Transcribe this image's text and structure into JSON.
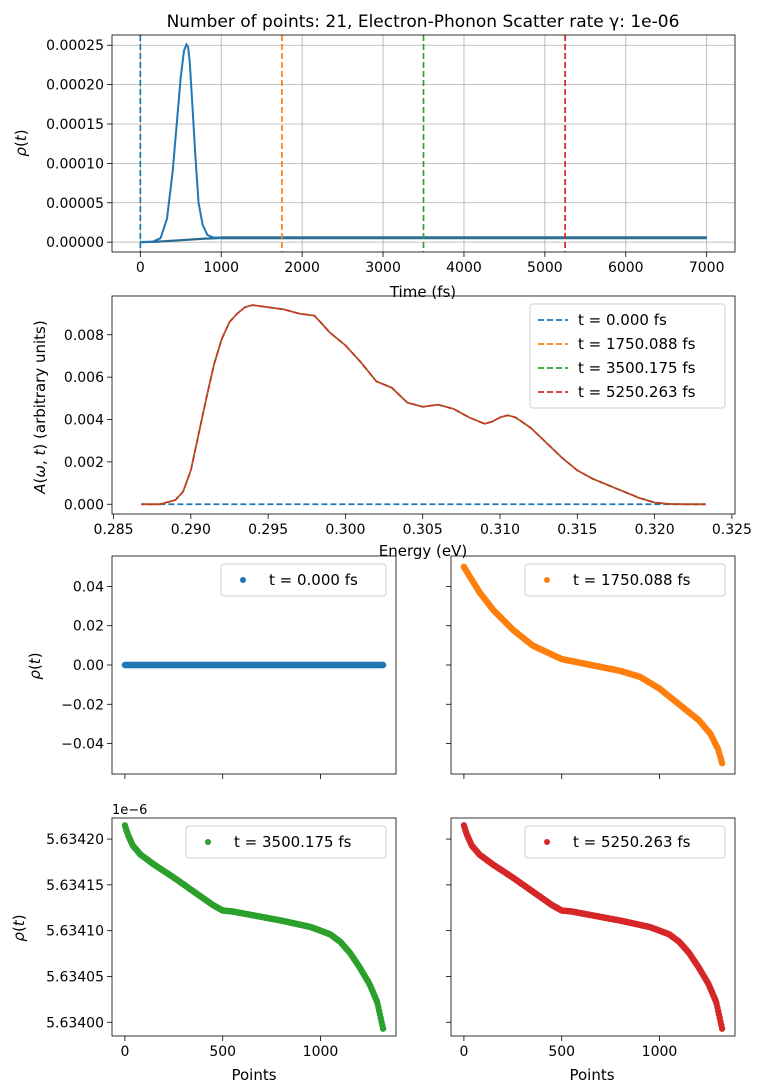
{
  "colors": {
    "blue": "#1f77b4",
    "orange": "#ff7f0e",
    "green": "#2ca02c",
    "red": "#d62728",
    "brown": "#b5452a",
    "grid": "#b0b0b0"
  },
  "chart_data": [
    {
      "type": "line",
      "title": "Number of points: 21, Electron-Phonon Scatter rate γ: 1e-06",
      "xlabel": "Time (fs)",
      "ylabel": "ρ(t)",
      "xlim": [
        -350,
        7350
      ],
      "ylim": [
        -1.25e-05,
        0.000263
      ],
      "x_ticks": [
        0,
        1000,
        2000,
        3000,
        4000,
        5000,
        6000,
        7000
      ],
      "x_tick_labels": [
        "0",
        "1000",
        "2000",
        "3000",
        "4000",
        "5000",
        "6000",
        "7000"
      ],
      "y_ticks": [
        0,
        5e-05,
        0.0001,
        0.00015,
        0.0002,
        0.00025
      ],
      "y_tick_labels": [
        "0.00000",
        "0.00005",
        "0.00010",
        "0.00015",
        "0.00020",
        "0.00025"
      ],
      "grid": true,
      "series": [
        {
          "x": [
            0,
            150,
            250,
            330,
            400,
            450,
            500,
            540,
            570,
            590,
            610,
            640,
            680,
            720,
            770,
            830,
            900,
            1000,
            1200,
            7000
          ],
          "y": [
            0,
            5e-07,
            5e-06,
            3e-05,
            9e-05,
            0.00015,
            0.00021,
            0.000243,
            0.000251,
            0.000248,
            0.00023,
            0.00018,
            0.00011,
            5e-05,
            2.2e-05,
            9e-06,
            6e-06,
            5.7e-06,
            5.6e-06,
            5.6e-06
          ],
          "color": "#1f77b4"
        },
        {
          "x": [
            0,
            200,
            500,
            800,
            1000,
            7000
          ],
          "y": [
            0,
            5e-07,
            2.5e-06,
            4.5e-06,
            5.2e-06,
            5.6e-06
          ],
          "color": "#2a6a8f"
        }
      ],
      "vlines": [
        {
          "x": 0,
          "color": "#1f77b4"
        },
        {
          "x": 1750.088,
          "color": "#ff7f0e"
        },
        {
          "x": 3500.175,
          "color": "#2ca02c"
        },
        {
          "x": 5250.263,
          "color": "#d62728"
        }
      ]
    },
    {
      "type": "line",
      "xlabel": "Energy (eV)",
      "ylabel": "A(ω, t) (arbitrary units)",
      "xlim": [
        0.2849,
        0.3252
      ],
      "ylim": [
        -0.00046,
        0.00983
      ],
      "x_ticks": [
        0.285,
        0.29,
        0.295,
        0.3,
        0.305,
        0.31,
        0.315,
        0.32,
        0.325
      ],
      "x_tick_labels": [
        "0.285",
        "0.290",
        "0.295",
        "0.300",
        "0.305",
        "0.310",
        "0.315",
        "0.320",
        "0.325"
      ],
      "y_ticks": [
        0,
        0.002,
        0.004,
        0.006,
        0.008
      ],
      "y_tick_labels": [
        "0.000",
        "0.002",
        "0.004",
        "0.006",
        "0.008"
      ],
      "grid": false,
      "legend": {
        "position": "top-right",
        "entries": [
          "t = 0.000 fs",
          "t = 1750.088 fs",
          "t = 3500.175 fs",
          "t = 5250.263 fs"
        ]
      },
      "series": [
        {
          "name": "t = 0.000 fs",
          "color": "#1f77b4",
          "x": [
            0.2868,
            0.3233
          ],
          "y": [
            0,
            0
          ]
        },
        {
          "name": "t = 1750.088 fs",
          "color": "#ff7f0e",
          "x": [
            0.2868,
            0.288,
            0.289,
            0.2895,
            0.29,
            0.2905,
            0.291,
            0.2915,
            0.292,
            0.2925,
            0.293,
            0.2935,
            0.294,
            0.295,
            0.296,
            0.297,
            0.298,
            0.299,
            0.3,
            0.301,
            0.302,
            0.303,
            0.304,
            0.305,
            0.306,
            0.307,
            0.308,
            0.309,
            0.3095,
            0.31,
            0.3105,
            0.311,
            0.312,
            0.313,
            0.314,
            0.315,
            0.316,
            0.317,
            0.318,
            0.319,
            0.32,
            0.321,
            0.322,
            0.3233
          ],
          "y": [
            0,
            0,
            0.0002,
            0.0006,
            0.0016,
            0.0033,
            0.005,
            0.0066,
            0.0078,
            0.0086,
            0.009,
            0.0093,
            0.0094,
            0.0093,
            0.0092,
            0.009,
            0.0089,
            0.0081,
            0.0075,
            0.0067,
            0.0058,
            0.0055,
            0.0048,
            0.0046,
            0.0047,
            0.0045,
            0.0041,
            0.0038,
            0.0039,
            0.0041,
            0.0042,
            0.0041,
            0.0036,
            0.0029,
            0.0022,
            0.0016,
            0.0012,
            0.0009,
            0.0006,
            0.0003,
            8e-05,
            1e-05,
            0,
            0
          ]
        },
        {
          "name": "t = 3500.175 fs",
          "color": "#2ca02c",
          "same_as": "t = 1750.088 fs"
        },
        {
          "name": "t = 5250.263 fs",
          "color": "#d62728",
          "same_as": "t = 1750.088 fs"
        }
      ]
    },
    {
      "type": "scatter",
      "ylabel": "ρ(t)",
      "xlim": [
        -66,
        1386
      ],
      "ylim": [
        -0.0555,
        0.0555
      ],
      "x_ticks": [
        0,
        500,
        1000
      ],
      "y_ticks": [
        -0.04,
        -0.02,
        0,
        0.02,
        0.04
      ],
      "y_tick_labels": [
        "−0.04",
        "−0.02",
        "0.00",
        "0.02",
        "0.04"
      ],
      "legend": {
        "position": "top-right",
        "entries": [
          "t = 0.000 fs"
        ]
      },
      "series": [
        {
          "name": "t = 0.000 fs",
          "color": "#1f77b4",
          "x": [
            0,
            1320
          ],
          "y": [
            0,
            0
          ],
          "profile": "flat"
        }
      ]
    },
    {
      "type": "scatter",
      "xlim": [
        -66,
        1386
      ],
      "ylim": [
        -0.0555,
        0.0555
      ],
      "x_ticks": [
        0,
        500,
        1000
      ],
      "y_ticks": [
        -0.04,
        -0.02,
        0,
        0.02,
        0.04
      ],
      "legend": {
        "position": "top-right",
        "entries": [
          "t = 1750.088 fs"
        ]
      },
      "series": [
        {
          "name": "t = 1750.088 fs",
          "color": "#ff7f0e",
          "x": [
            0,
            30,
            80,
            150,
            250,
            350,
            500,
            650,
            800,
            900,
            1000,
            1100,
            1200,
            1260,
            1300,
            1320
          ],
          "y": [
            0.05,
            0.045,
            0.037,
            0.028,
            0.018,
            0.01,
            0.003,
            0.0,
            -0.003,
            -0.006,
            -0.012,
            -0.02,
            -0.028,
            -0.035,
            -0.043,
            -0.05
          ]
        }
      ]
    },
    {
      "type": "scatter",
      "ylabel": "ρ(t)",
      "offset_text": "1e−6",
      "xlabel": "Points",
      "xlim": [
        -66,
        1386
      ],
      "ylim": [
        5.633985,
        5.634223
      ],
      "x_ticks": [
        0,
        500,
        1000
      ],
      "x_tick_labels": [
        "0",
        "500",
        "1000"
      ],
      "y_ticks": [
        5.634,
        5.63405,
        5.6341,
        5.63415,
        5.6342
      ],
      "y_tick_labels": [
        "5.63400",
        "5.63405",
        "5.63410",
        "5.63415",
        "5.63420"
      ],
      "legend": {
        "position": "top-right",
        "entries": [
          "t = 3500.175 fs"
        ]
      },
      "series": [
        {
          "name": "t = 3500.175 fs",
          "color": "#2ca02c",
          "x": [
            0,
            15,
            40,
            80,
            150,
            250,
            350,
            450,
            500,
            550,
            650,
            800,
            950,
            1050,
            1100,
            1150,
            1200,
            1250,
            1290,
            1320
          ],
          "y": [
            5.634215,
            5.634205,
            5.634193,
            5.634183,
            5.634172,
            5.634158,
            5.634143,
            5.634128,
            5.634122,
            5.634121,
            5.634117,
            5.634111,
            5.634104,
            5.634096,
            5.634088,
            5.634076,
            5.63406,
            5.634042,
            5.634022,
            5.633993
          ]
        }
      ]
    },
    {
      "type": "scatter",
      "xlabel": "Points",
      "xlim": [
        -66,
        1386
      ],
      "ylim": [
        5.633985,
        5.634223
      ],
      "x_ticks": [
        0,
        500,
        1000
      ],
      "x_tick_labels": [
        "0",
        "500",
        "1000"
      ],
      "y_ticks": [
        5.634,
        5.63405,
        5.6341,
        5.63415,
        5.6342
      ],
      "legend": {
        "position": "top-right",
        "entries": [
          "t = 5250.263 fs"
        ]
      },
      "series": [
        {
          "name": "t = 5250.263 fs",
          "color": "#d62728",
          "x": [
            0,
            15,
            40,
            80,
            150,
            250,
            350,
            450,
            500,
            550,
            650,
            800,
            950,
            1050,
            1100,
            1150,
            1200,
            1250,
            1290,
            1320
          ],
          "y": [
            5.634215,
            5.634205,
            5.634193,
            5.634183,
            5.634172,
            5.634158,
            5.634143,
            5.634128,
            5.634122,
            5.634121,
            5.634117,
            5.634111,
            5.634104,
            5.634096,
            5.634088,
            5.634076,
            5.63406,
            5.634042,
            5.634022,
            5.633993
          ]
        }
      ]
    }
  ]
}
